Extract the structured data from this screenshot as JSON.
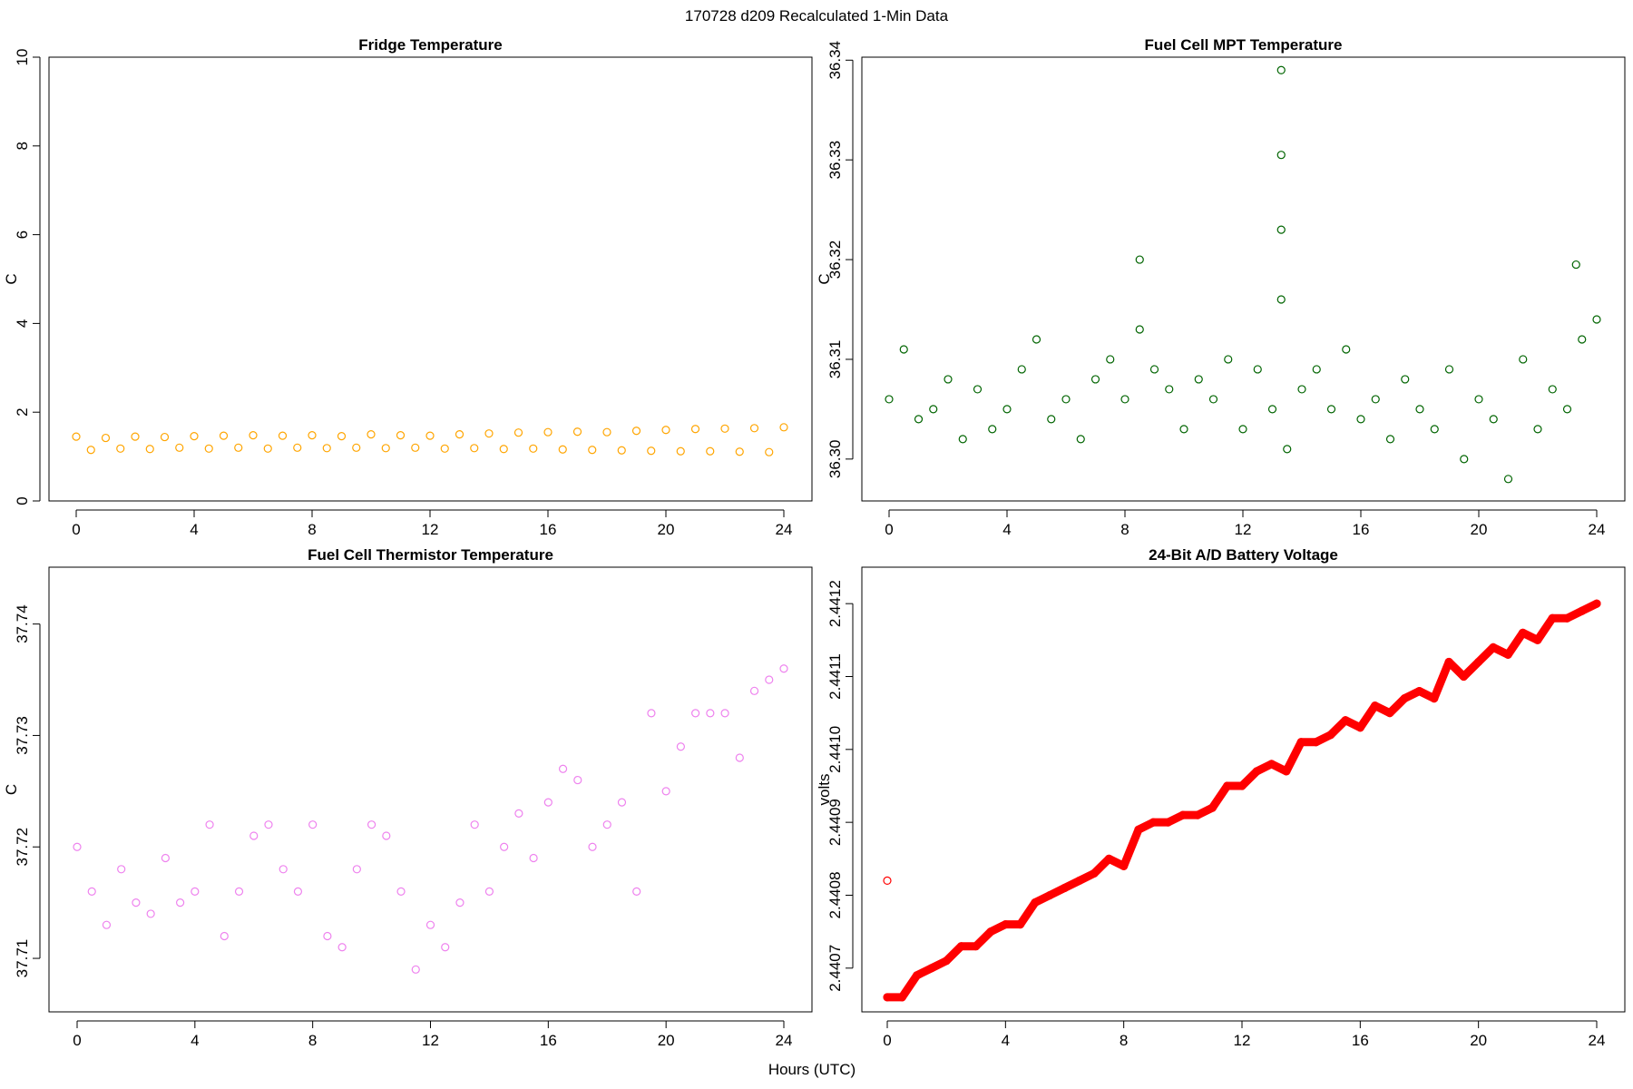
{
  "title": "170728   d209   Recalculated 1-Min Data",
  "xlabel": "Hours (UTC)",
  "chart_data": [
    {
      "type": "scatter",
      "title": "Fridge Temperature",
      "ylabel": "C",
      "color": "#FFA500",
      "xlim": [
        0,
        24
      ],
      "ylim": [
        0,
        10
      ],
      "xticks": [
        "0",
        "4",
        "8",
        "12",
        "16",
        "20",
        "24"
      ],
      "yticks": [
        "0",
        "2",
        "4",
        "6",
        "8",
        "10"
      ],
      "x": [
        0,
        0.5,
        1,
        1.5,
        2,
        2.5,
        3,
        3.5,
        4,
        4.5,
        5,
        5.5,
        6,
        6.5,
        7,
        7.5,
        8,
        8.5,
        9,
        9.5,
        10,
        10.5,
        11,
        11.5,
        12,
        12.5,
        13,
        13.5,
        14,
        14.5,
        15,
        15.5,
        16,
        16.5,
        17,
        17.5,
        18,
        18.5,
        19,
        19.5,
        20,
        20.5,
        21,
        21.5,
        22,
        22.5,
        23,
        23.5,
        24
      ],
      "y": [
        1.45,
        1.15,
        1.42,
        1.18,
        1.45,
        1.17,
        1.44,
        1.2,
        1.46,
        1.18,
        1.47,
        1.2,
        1.48,
        1.18,
        1.47,
        1.2,
        1.48,
        1.19,
        1.46,
        1.2,
        1.5,
        1.19,
        1.48,
        1.2,
        1.47,
        1.18,
        1.5,
        1.19,
        1.52,
        1.17,
        1.54,
        1.18,
        1.55,
        1.16,
        1.56,
        1.15,
        1.55,
        1.14,
        1.58,
        1.13,
        1.6,
        1.12,
        1.62,
        1.12,
        1.63,
        1.11,
        1.64,
        1.1,
        1.66
      ]
    },
    {
      "type": "scatter",
      "title": "Fuel Cell MPT Temperature",
      "ylabel": "C",
      "color": "#006400",
      "xlim": [
        0,
        24
      ],
      "ylim": [
        36.2958,
        36.3403
      ],
      "xticks": [
        "0",
        "4",
        "8",
        "12",
        "16",
        "20",
        "24"
      ],
      "yticks": [
        "36.30",
        "36.31",
        "36.32",
        "36.33",
        "36.34"
      ],
      "x": [
        0,
        0.5,
        1,
        1.5,
        2,
        2.5,
        3,
        3.5,
        4,
        4.5,
        5,
        5.5,
        6,
        6.5,
        7,
        7.5,
        8,
        8.5,
        8.5,
        9,
        9.5,
        10,
        10.5,
        11,
        11.5,
        12,
        12.5,
        13,
        13.3,
        13.3,
        13.3,
        13.3,
        13.5,
        14,
        14.5,
        15,
        15.5,
        16,
        16.5,
        17,
        17.5,
        18,
        18.5,
        19,
        19.5,
        20,
        20.5,
        21,
        21.5,
        22,
        22.5,
        23,
        23.3,
        23.5,
        24
      ],
      "y": [
        36.306,
        36.311,
        36.304,
        36.305,
        36.308,
        36.302,
        36.307,
        36.303,
        36.305,
        36.309,
        36.312,
        36.304,
        36.306,
        36.302,
        36.308,
        36.31,
        36.306,
        36.313,
        36.32,
        36.309,
        36.307,
        36.303,
        36.308,
        36.306,
        36.31,
        36.303,
        36.309,
        36.305,
        36.339,
        36.3305,
        36.323,
        36.316,
        36.301,
        36.307,
        36.309,
        36.305,
        36.311,
        36.304,
        36.306,
        36.302,
        36.308,
        36.305,
        36.303,
        36.309,
        36.3,
        36.306,
        36.304,
        36.298,
        36.31,
        36.303,
        36.307,
        36.305,
        36.3195,
        36.312,
        36.314
      ]
    },
    {
      "type": "scatter",
      "title": "Fuel Cell Thermistor Temperature",
      "ylabel": "C",
      "color": "#EE82EE",
      "xlim": [
        0,
        24
      ],
      "ylim": [
        37.7052,
        37.7451
      ],
      "xticks": [
        "0",
        "4",
        "8",
        "12",
        "16",
        "20",
        "24"
      ],
      "yticks": [
        "37.71",
        "37.72",
        "37.73",
        "37.74"
      ],
      "x": [
        0,
        0.5,
        1,
        1.5,
        2,
        2.5,
        3,
        3.5,
        4,
        4.5,
        5,
        5.5,
        6,
        6.5,
        7,
        7.5,
        8,
        8.5,
        9,
        9.5,
        10,
        10.5,
        11,
        11.5,
        12,
        12.5,
        13,
        13.5,
        14,
        14.5,
        15,
        15.5,
        16,
        16.5,
        17,
        17.5,
        18,
        18.5,
        19,
        19.5,
        20,
        20.5,
        21,
        21.5,
        22,
        22.5,
        23,
        23.5,
        24
      ],
      "y": [
        37.72,
        37.716,
        37.713,
        37.718,
        37.715,
        37.714,
        37.719,
        37.715,
        37.716,
        37.722,
        37.712,
        37.716,
        37.721,
        37.722,
        37.718,
        37.716,
        37.722,
        37.712,
        37.711,
        37.718,
        37.722,
        37.721,
        37.716,
        37.709,
        37.713,
        37.711,
        37.715,
        37.722,
        37.716,
        37.72,
        37.723,
        37.719,
        37.724,
        37.727,
        37.726,
        37.72,
        37.722,
        37.724,
        37.716,
        37.732,
        37.725,
        37.729,
        37.732,
        37.732,
        37.732,
        37.728,
        37.734,
        37.735,
        37.736
      ]
    },
    {
      "type": "scatter",
      "title": "24-Bit A/D Battery Voltage",
      "ylabel": "volts",
      "color": "#FF0000",
      "xlim": [
        0,
        24
      ],
      "ylim": [
        2.44064,
        2.44125
      ],
      "xticks": [
        "0",
        "4",
        "8",
        "12",
        "16",
        "20",
        "24"
      ],
      "yticks": [
        "2.4407",
        "2.4408",
        "2.4409",
        "2.4410",
        "2.4411",
        "2.4412"
      ],
      "x": [
        0,
        0,
        0.5,
        1,
        1.5,
        2,
        2.5,
        3,
        3.5,
        4,
        4.5,
        5,
        5.5,
        6,
        6.5,
        7,
        7.5,
        8,
        8.5,
        9,
        9.5,
        10,
        10.5,
        11,
        11.5,
        12,
        12.5,
        13,
        13.5,
        14,
        14.5,
        15,
        15.5,
        16,
        16.5,
        17,
        17.5,
        18,
        18.5,
        19,
        19.5,
        20,
        20.5,
        21,
        21.5,
        22,
        22.5,
        23,
        23.5,
        24
      ],
      "y": [
        2.44082,
        2.44066,
        2.44066,
        2.44069,
        2.4407,
        2.44071,
        2.44073,
        2.44073,
        2.44075,
        2.44076,
        2.44076,
        2.44079,
        2.4408,
        2.44081,
        2.44082,
        2.44083,
        2.44085,
        2.44084,
        2.44089,
        2.4409,
        2.4409,
        2.44091,
        2.44091,
        2.44092,
        2.44095,
        2.44095,
        2.44097,
        2.44098,
        2.44097,
        2.44101,
        2.44101,
        2.44102,
        2.44104,
        2.44103,
        2.44106,
        2.44105,
        2.44107,
        2.44108,
        2.44107,
        2.44112,
        2.4411,
        2.44112,
        2.44114,
        2.44113,
        2.44116,
        2.44115,
        2.44118,
        2.44118,
        2.44119,
        2.4412
      ]
    }
  ]
}
